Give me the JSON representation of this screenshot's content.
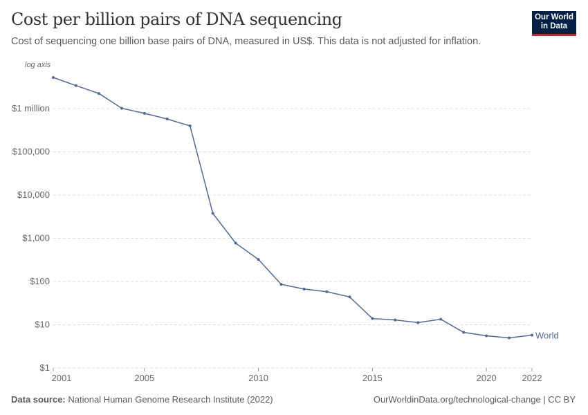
{
  "header": {
    "title": "Cost per billion pairs of DNA sequencing",
    "subtitle": "Cost of sequencing one billion base pairs of DNA, measured in US$. This data is not adjusted for inflation.",
    "logo_text": "Our World in Data"
  },
  "footer": {
    "source_label": "Data source:",
    "source": "National Human Genome Research Institute (2022)",
    "url": "OurWorldinData.org/technological-change | CC BY"
  },
  "chart_data": {
    "type": "line",
    "title": "Cost per billion pairs of DNA sequencing",
    "axis_note": "log axis",
    "yscale": "log",
    "ylim": [
      1,
      10000000
    ],
    "xlim": [
      2001,
      2022
    ],
    "grid": "horizontal dashed",
    "color": "#4c6a9c",
    "y_ticks": [
      {
        "value": 1,
        "label": "$1"
      },
      {
        "value": 10,
        "label": "$10"
      },
      {
        "value": 100,
        "label": "$100"
      },
      {
        "value": 1000,
        "label": "$1,000"
      },
      {
        "value": 10000,
        "label": "$10,000"
      },
      {
        "value": 100000,
        "label": "$100,000"
      },
      {
        "value": 1000000,
        "label": "$1 million"
      }
    ],
    "x_ticks": [
      2001,
      2005,
      2010,
      2015,
      2020,
      2022
    ],
    "series": [
      {
        "name": "World",
        "x": [
          2001,
          2002,
          2003,
          2004,
          2005,
          2006,
          2007,
          2008,
          2009,
          2010,
          2011,
          2012,
          2013,
          2014,
          2015,
          2016,
          2017,
          2018,
          2019,
          2020,
          2021,
          2022
        ],
        "values": [
          5250000,
          3400000,
          2240000,
          1020000,
          776000,
          575000,
          398000,
          3770,
          774,
          324,
          86,
          67,
          58,
          44,
          13.9,
          12.9,
          11.2,
          13.4,
          6.67,
          5.55,
          4.97,
          5.75
        ]
      }
    ]
  }
}
